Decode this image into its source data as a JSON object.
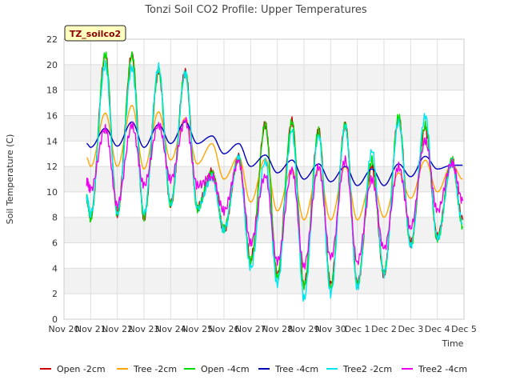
{
  "chart_data": {
    "type": "line",
    "title": "Tonzi Soil CO2 Profile: Upper Temperatures",
    "xlabel": "Time",
    "ylabel": "Soil Temperature (C)",
    "badge": "TZ_soilco2",
    "ylim": [
      0,
      22
    ],
    "yticks": [
      0,
      2,
      4,
      6,
      8,
      10,
      12,
      14,
      16,
      18,
      20,
      22
    ],
    "xlim": [
      0,
      15
    ],
    "xticks": [
      {
        "v": 0,
        "label": "Nov 20"
      },
      {
        "v": 1,
        "label": "Nov 21"
      },
      {
        "v": 2,
        "label": "Nov 22"
      },
      {
        "v": 3,
        "label": "Nov 23"
      },
      {
        "v": 4,
        "label": "Nov 24"
      },
      {
        "v": 5,
        "label": "Nov 25"
      },
      {
        "v": 6,
        "label": "Nov 26"
      },
      {
        "v": 7,
        "label": "Nov 27"
      },
      {
        "v": 8,
        "label": "Nov 28"
      },
      {
        "v": 9,
        "label": "Nov 29"
      },
      {
        "v": 10,
        "label": "Nov 30"
      },
      {
        "v": 11,
        "label": "Dec 1"
      },
      {
        "v": 12,
        "label": "Dec 2"
      },
      {
        "v": 13,
        "label": "Dec 3"
      },
      {
        "v": 14,
        "label": "Dec 4"
      },
      {
        "v": 15,
        "label": "Dec 5"
      }
    ],
    "grid": true,
    "legend_position": "bottom",
    "days": [
      {
        "x": 0.85,
        "open2": 9.5,
        "tree2": 12.7,
        "open4": 9.5,
        "tree4": 13.8,
        "t2_2": 9.6,
        "t2_4": 10.8
      },
      {
        "x": 1.0,
        "open2": 8.0,
        "tree2": 12.0,
        "open4": 7.9,
        "tree4": 13.5,
        "t2_2": 8.2,
        "t2_4": 10.2
      },
      {
        "x": 1.55,
        "open2": 20.8,
        "tree2": 16.2,
        "open4": 20.8,
        "tree4": 15.0,
        "t2_2": 20.0,
        "t2_4": 15.0
      },
      {
        "x": 2.0,
        "open2": 8.3,
        "tree2": 12.0,
        "open4": 8.2,
        "tree4": 13.6,
        "t2_2": 8.3,
        "t2_4": 9.0
      },
      {
        "x": 2.55,
        "open2": 20.8,
        "tree2": 16.8,
        "open4": 20.8,
        "tree4": 15.5,
        "t2_2": 19.8,
        "t2_4": 15.2
      },
      {
        "x": 3.0,
        "open2": 8.0,
        "tree2": 11.8,
        "open4": 8.0,
        "tree4": 13.5,
        "t2_2": 8.2,
        "t2_4": 10.5
      },
      {
        "x": 3.55,
        "open2": 19.5,
        "tree2": 16.3,
        "open4": 19.5,
        "tree4": 15.3,
        "t2_2": 19.8,
        "t2_4": 15.3
      },
      {
        "x": 4.0,
        "open2": 9.0,
        "tree2": 12.5,
        "open4": 9.0,
        "tree4": 13.8,
        "t2_2": 9.0,
        "t2_4": 11.0
      },
      {
        "x": 4.55,
        "open2": 19.4,
        "tree2": 15.8,
        "open4": 19.4,
        "tree4": 15.5,
        "t2_2": 19.3,
        "t2_4": 15.6
      },
      {
        "x": 5.0,
        "open2": 8.8,
        "tree2": 12.2,
        "open4": 8.7,
        "tree4": 13.8,
        "t2_2": 8.7,
        "t2_4": 10.5
      },
      {
        "x": 5.55,
        "open2": 11.6,
        "tree2": 13.8,
        "open4": 11.5,
        "tree4": 14.4,
        "t2_2": 11.2,
        "t2_4": 11.2
      },
      {
        "x": 6.0,
        "open2": 7.0,
        "tree2": 11.0,
        "open4": 7.1,
        "tree4": 13.0,
        "t2_2": 7.0,
        "t2_4": 8.5
      },
      {
        "x": 6.55,
        "open2": 12.7,
        "tree2": 12.8,
        "open4": 12.7,
        "tree4": 13.8,
        "t2_2": 12.7,
        "t2_4": 12.4
      },
      {
        "x": 7.0,
        "open2": 4.7,
        "tree2": 9.2,
        "open4": 4.5,
        "tree4": 12.0,
        "t2_2": 4.0,
        "t2_4": 6.0
      },
      {
        "x": 7.55,
        "open2": 15.3,
        "tree2": 12.6,
        "open4": 15.3,
        "tree4": 12.9,
        "t2_2": 12.5,
        "t2_4": 11.3
      },
      {
        "x": 8.0,
        "open2": 3.5,
        "tree2": 8.5,
        "open4": 3.3,
        "tree4": 11.5,
        "t2_2": 2.8,
        "t2_4": 4.5
      },
      {
        "x": 8.55,
        "open2": 15.6,
        "tree2": 11.8,
        "open4": 15.6,
        "tree4": 12.5,
        "t2_2": 14.8,
        "t2_4": 11.7
      },
      {
        "x": 9.0,
        "open2": 2.7,
        "tree2": 7.8,
        "open4": 2.5,
        "tree4": 11.0,
        "t2_2": 1.6,
        "t2_4": 4.2
      },
      {
        "x": 9.55,
        "open2": 14.8,
        "tree2": 11.8,
        "open4": 14.8,
        "tree4": 12.2,
        "t2_2": 14.5,
        "t2_4": 12.0
      },
      {
        "x": 10.0,
        "open2": 2.7,
        "tree2": 7.8,
        "open4": 2.5,
        "tree4": 10.8,
        "t2_2": 2.0,
        "t2_4": 4.8
      },
      {
        "x": 10.55,
        "open2": 15.3,
        "tree2": 12.0,
        "open4": 15.3,
        "tree4": 12.0,
        "t2_2": 15.2,
        "t2_4": 12.5
      },
      {
        "x": 11.0,
        "open2": 2.8,
        "tree2": 7.8,
        "open4": 2.7,
        "tree4": 10.5,
        "t2_2": 2.5,
        "t2_4": 4.5
      },
      {
        "x": 11.55,
        "open2": 12.0,
        "tree2": 11.0,
        "open4": 12.5,
        "tree4": 11.8,
        "t2_2": 13.3,
        "t2_4": 11.0
      },
      {
        "x": 12.0,
        "open2": 3.5,
        "tree2": 8.0,
        "open4": 3.6,
        "tree4": 10.5,
        "t2_2": 3.5,
        "t2_4": 5.5
      },
      {
        "x": 12.55,
        "open2": 15.8,
        "tree2": 11.5,
        "open4": 15.9,
        "tree4": 12.2,
        "t2_2": 15.5,
        "t2_4": 12.0
      },
      {
        "x": 13.0,
        "open2": 6.0,
        "tree2": 9.5,
        "open4": 5.8,
        "tree4": 11.2,
        "t2_2": 5.8,
        "t2_4": 7.2
      },
      {
        "x": 13.55,
        "open2": 15.0,
        "tree2": 12.5,
        "open4": 15.3,
        "tree4": 12.8,
        "t2_2": 16.0,
        "t2_4": 14.0
      },
      {
        "x": 14.0,
        "open2": 6.5,
        "tree2": 10.0,
        "open4": 6.3,
        "tree4": 11.8,
        "t2_2": 6.3,
        "t2_4": 8.5
      },
      {
        "x": 14.55,
        "open2": 12.5,
        "tree2": 12.2,
        "open4": 12.5,
        "tree4": 12.1,
        "t2_2": 12.3,
        "t2_4": 12.3
      },
      {
        "x": 14.95,
        "open2": 7.8,
        "tree2": 11.0,
        "open4": 7.3,
        "tree4": 12.1,
        "t2_2": 7.5,
        "t2_4": 9.3
      }
    ],
    "series": [
      {
        "name": "Open -2cm",
        "key": "open2",
        "color": "#cc0000"
      },
      {
        "name": "Tree -2cm",
        "key": "tree2",
        "color": "#ffa500"
      },
      {
        "name": "Open -4cm",
        "key": "open4",
        "color": "#00dd00"
      },
      {
        "name": "Tree -4cm",
        "key": "tree4",
        "color": "#0000bb"
      },
      {
        "name": "Tree2 -2cm",
        "key": "t2_2",
        "color": "#00e5ee"
      },
      {
        "name": "Tree2 -4cm",
        "key": "t2_4",
        "color": "#ee00ee"
      }
    ]
  }
}
